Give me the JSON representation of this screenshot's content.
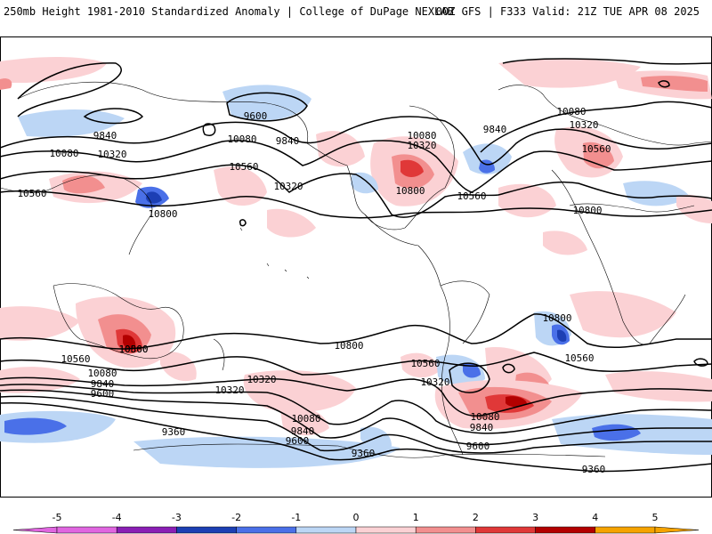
{
  "header": {
    "left_title": "250mb Height 1981-2010 Standardized Anomaly | College of DuPage NEXLAB",
    "right_title": "00Z GFS | F333 Valid: 21Z TUE APR 08 2025"
  },
  "colorbar": {
    "ticks": [
      "-5",
      "-4",
      "-3",
      "-2",
      "-1",
      "0",
      "1",
      "2",
      "3",
      "4",
      "5"
    ],
    "colors": [
      "#e066e0",
      "#8a1fb5",
      "#1c3fb4",
      "#4a70e8",
      "#bcd6f5",
      "#ffffff",
      "#fbd1d4",
      "#f28f8f",
      "#e03838",
      "#b30000",
      "#f5a300"
    ]
  },
  "contour_labels": [
    {
      "id": "c1",
      "text": "9600"
    },
    {
      "id": "c2",
      "text": "9840"
    },
    {
      "id": "c3",
      "text": "9840"
    },
    {
      "id": "c4",
      "text": "10080"
    },
    {
      "id": "c5",
      "text": "10080"
    },
    {
      "id": "c6",
      "text": "10320"
    },
    {
      "id": "c7",
      "text": "10560"
    },
    {
      "id": "c8",
      "text": "10560"
    },
    {
      "id": "c9",
      "text": "10320"
    },
    {
      "id": "c10",
      "text": "10800"
    },
    {
      "id": "c11",
      "text": "10080"
    },
    {
      "id": "c12",
      "text": "10320"
    },
    {
      "id": "c13",
      "text": "10800"
    },
    {
      "id": "c14",
      "text": "10560"
    },
    {
      "id": "c15",
      "text": "9840"
    },
    {
      "id": "c16",
      "text": "10080"
    },
    {
      "id": "c17",
      "text": "10320"
    },
    {
      "id": "c18",
      "text": "10560"
    },
    {
      "id": "c19",
      "text": "10800"
    },
    {
      "id": "c20",
      "text": "10800"
    },
    {
      "id": "c21",
      "text": "10800"
    },
    {
      "id": "c22",
      "text": "10560"
    },
    {
      "id": "c23",
      "text": "10080"
    },
    {
      "id": "c24",
      "text": "9840"
    },
    {
      "id": "c25",
      "text": "9600"
    },
    {
      "id": "c26",
      "text": "10320"
    },
    {
      "id": "c27",
      "text": "10560"
    },
    {
      "id": "c28",
      "text": "10560"
    },
    {
      "id": "c29",
      "text": "10320"
    },
    {
      "id": "c30",
      "text": "10800"
    },
    {
      "id": "c31",
      "text": "10560"
    },
    {
      "id": "c32",
      "text": "10320"
    },
    {
      "id": "c33",
      "text": "10080"
    },
    {
      "id": "c34",
      "text": "9840"
    },
    {
      "id": "c35",
      "text": "9600"
    },
    {
      "id": "c36",
      "text": "9360"
    },
    {
      "id": "c37",
      "text": "9360"
    },
    {
      "id": "c38",
      "text": "10080"
    },
    {
      "id": "c39",
      "text": "9840"
    },
    {
      "id": "c40",
      "text": "9600"
    },
    {
      "id": "c41",
      "text": "9360"
    }
  ]
}
